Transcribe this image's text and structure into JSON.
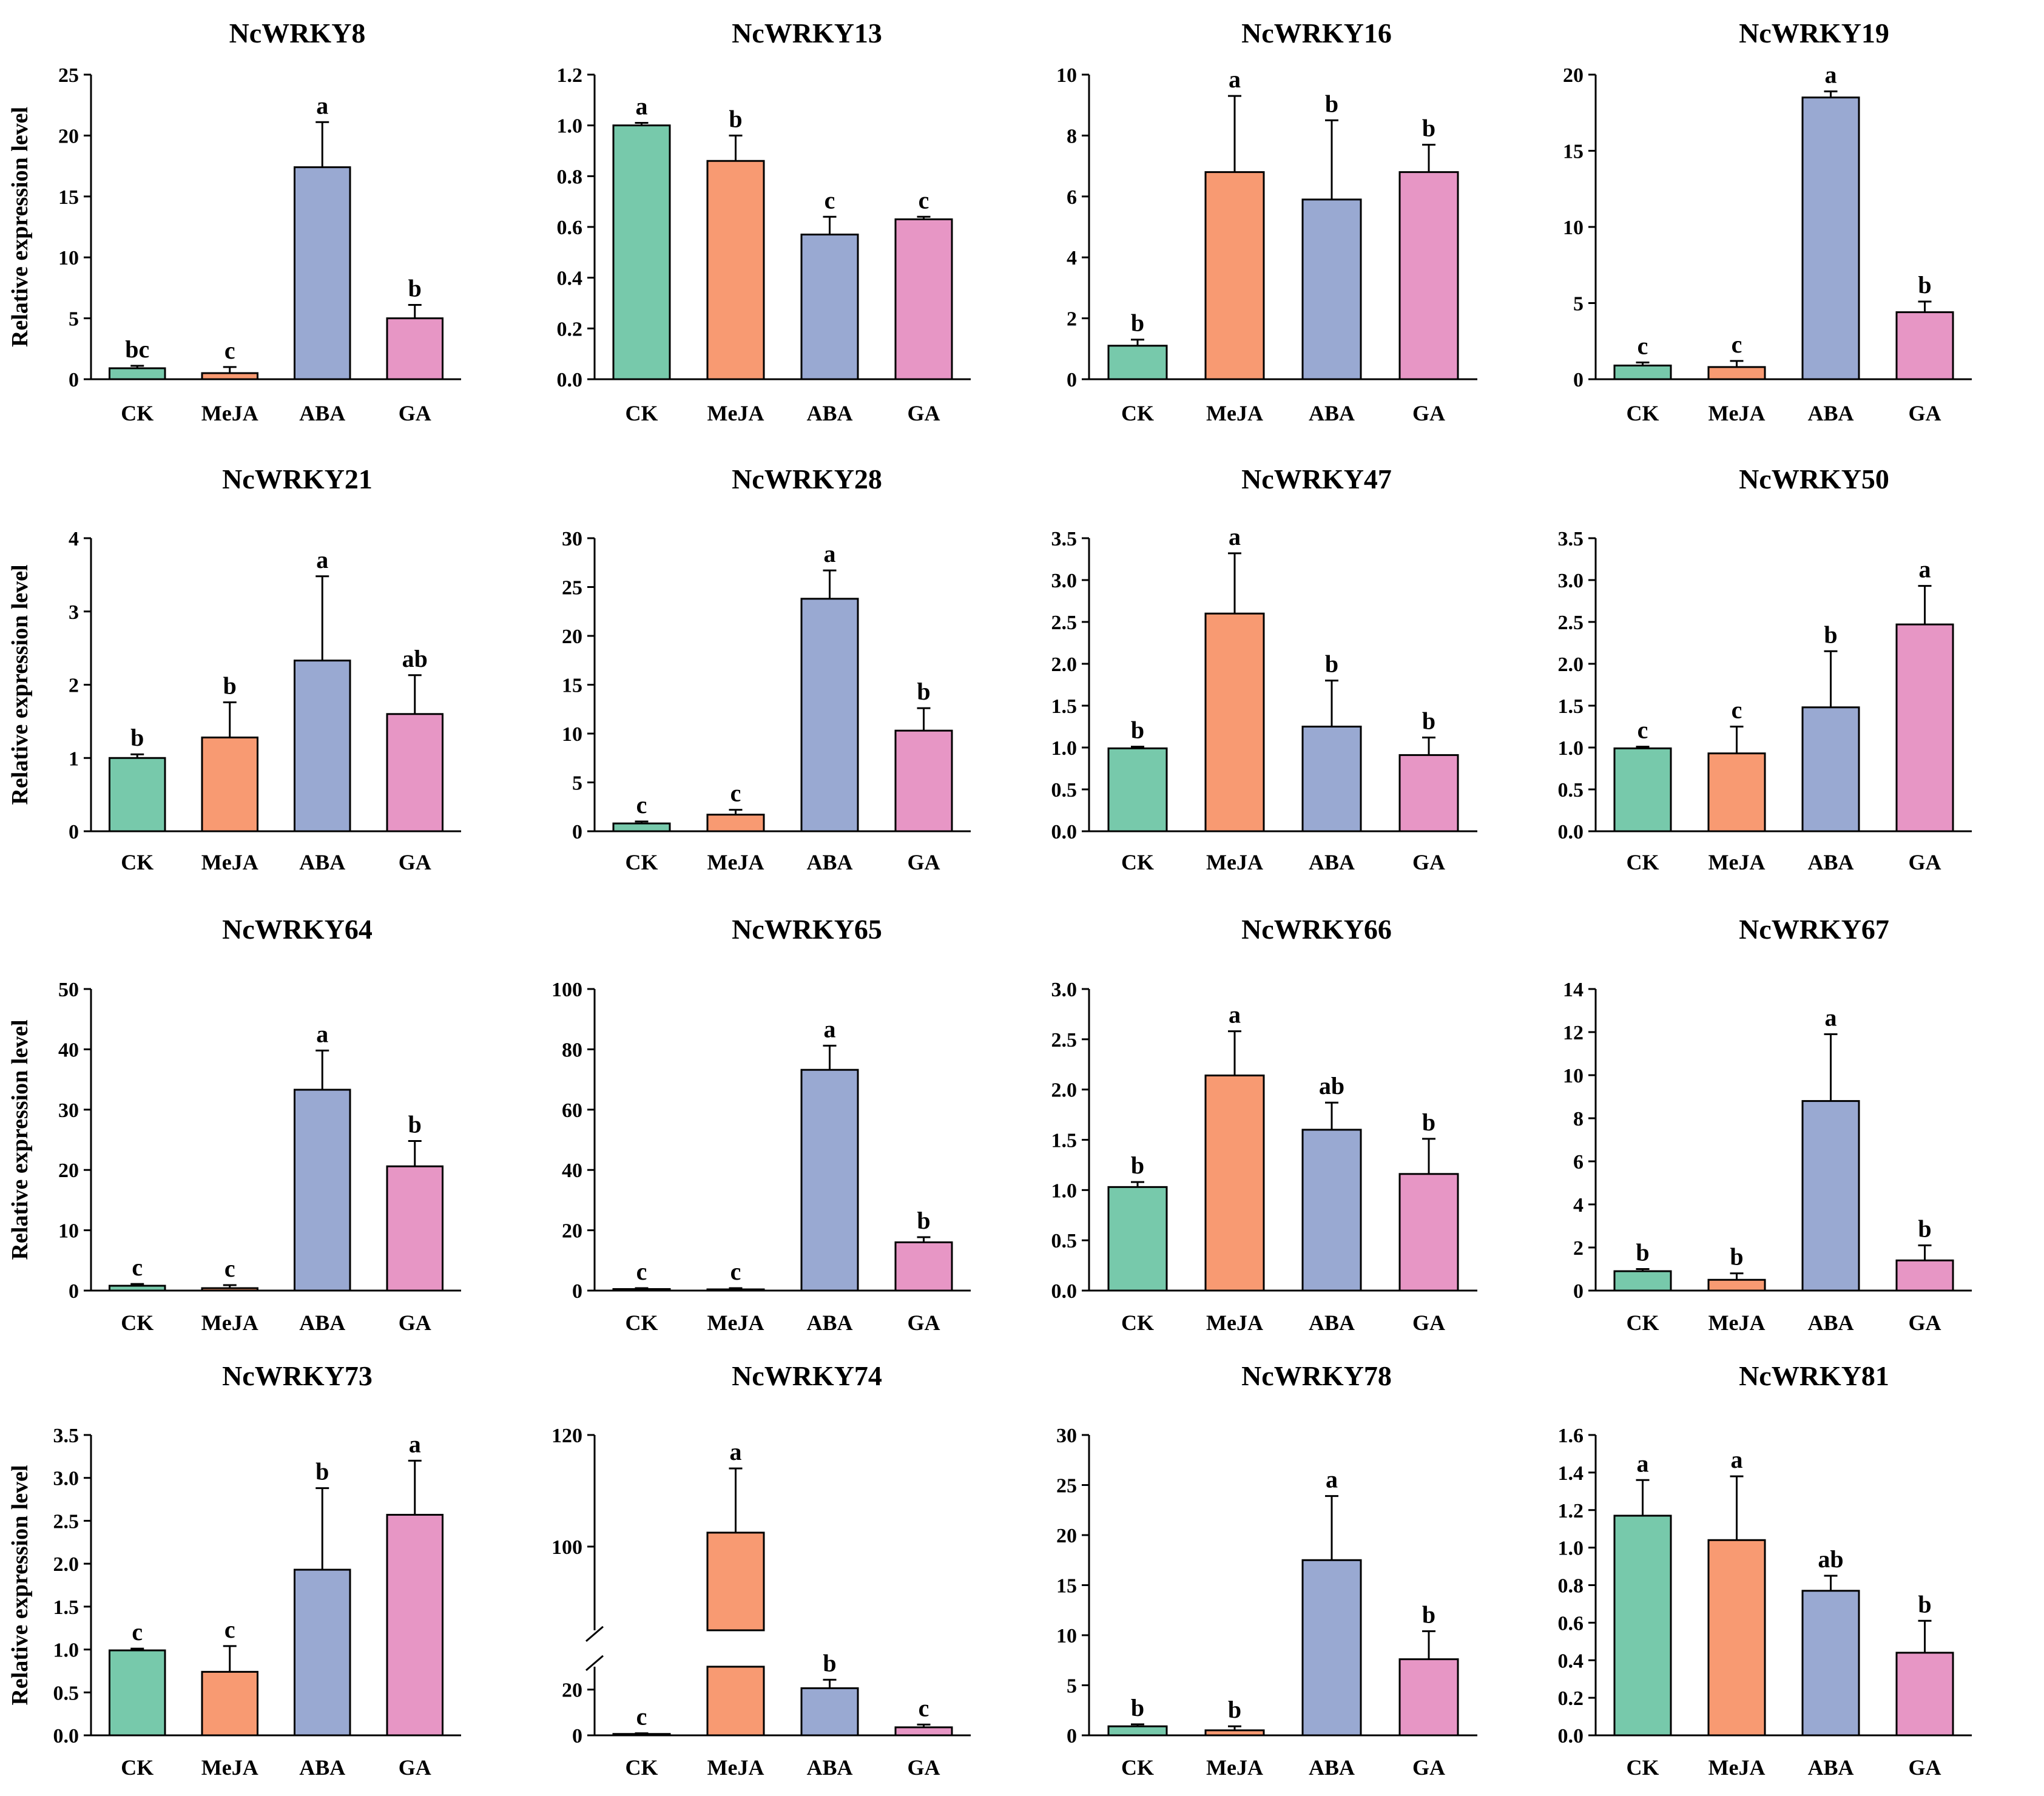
{
  "colors": {
    "CK": "#77c9ab",
    "MeJA": "#f89a72",
    "ABA": "#99a9d2",
    "GA": "#e796c5",
    "axis": "#000000"
  },
  "chart_data": [
    {
      "type": "bar",
      "title": "NcWRKY8",
      "ylabel": "Relative expression level",
      "categories": [
        "CK",
        "MeJA",
        "ABA",
        "GA"
      ],
      "values": [
        0.9,
        0.5,
        17.4,
        5.0
      ],
      "errors": [
        0.2,
        0.5,
        3.7,
        1.1
      ],
      "letters": [
        "bc",
        "c",
        "a",
        "b"
      ],
      "ylim": [
        0,
        25
      ],
      "yticks": [
        "0",
        "5",
        "10",
        "15",
        "20",
        "25"
      ]
    },
    {
      "type": "bar",
      "title": "NcWRKY13",
      "ylabel": "",
      "categories": [
        "CK",
        "MeJA",
        "ABA",
        "GA"
      ],
      "values": [
        1.0,
        0.86,
        0.57,
        0.63
      ],
      "errors": [
        0.01,
        0.1,
        0.07,
        0.01
      ],
      "letters": [
        "a",
        "b",
        "c",
        "c"
      ],
      "ylim": [
        0,
        1.2
      ],
      "yticks": [
        "0.0",
        "0.2",
        "0.4",
        "0.6",
        "0.8",
        "1.0",
        "1.2"
      ]
    },
    {
      "type": "bar",
      "title": "NcWRKY16",
      "ylabel": "",
      "categories": [
        "CK",
        "MeJA",
        "ABA",
        "GA"
      ],
      "values": [
        1.1,
        6.8,
        5.9,
        6.8
      ],
      "errors": [
        0.2,
        2.5,
        2.6,
        0.9
      ],
      "letters": [
        "b",
        "a",
        "b",
        "b"
      ],
      "ylim": [
        0,
        10
      ],
      "yticks": [
        "0",
        "2",
        "4",
        "6",
        "8",
        "10"
      ]
    },
    {
      "type": "bar",
      "title": "NcWRKY19",
      "ylabel": "",
      "categories": [
        "CK",
        "MeJA",
        "ABA",
        "GA"
      ],
      "values": [
        0.9,
        0.8,
        18.5,
        4.4
      ],
      "errors": [
        0.2,
        0.4,
        0.4,
        0.7
      ],
      "letters": [
        "c",
        "c",
        "a",
        "b"
      ],
      "ylim": [
        0,
        20
      ],
      "yticks": [
        "0",
        "5",
        "10",
        "15",
        "20"
      ]
    },
    {
      "type": "bar",
      "title": "NcWRKY21",
      "ylabel": "Relative expression level",
      "categories": [
        "CK",
        "MeJA",
        "ABA",
        "GA"
      ],
      "values": [
        1.0,
        1.28,
        2.33,
        1.6
      ],
      "errors": [
        0.05,
        0.48,
        1.15,
        0.53
      ],
      "letters": [
        "b",
        "b",
        "a",
        "ab"
      ],
      "ylim": [
        0,
        4
      ],
      "yticks": [
        "0",
        "1",
        "2",
        "3",
        "4"
      ]
    },
    {
      "type": "bar",
      "title": "NcWRKY28",
      "ylabel": "",
      "categories": [
        "CK",
        "MeJA",
        "ABA",
        "GA"
      ],
      "values": [
        0.8,
        1.7,
        23.8,
        10.3
      ],
      "errors": [
        0.2,
        0.5,
        2.9,
        2.3
      ],
      "letters": [
        "c",
        "c",
        "a",
        "b"
      ],
      "ylim": [
        0,
        30
      ],
      "yticks": [
        "0",
        "5",
        "10",
        "15",
        "20",
        "25",
        "30"
      ]
    },
    {
      "type": "bar",
      "title": "NcWRKY47",
      "ylabel": "",
      "categories": [
        "CK",
        "MeJA",
        "ABA",
        "GA"
      ],
      "values": [
        0.99,
        2.6,
        1.25,
        0.91
      ],
      "errors": [
        0.02,
        0.72,
        0.55,
        0.21
      ],
      "letters": [
        "b",
        "a",
        "b",
        "b"
      ],
      "ylim": [
        0,
        3.5
      ],
      "yticks": [
        "0.0",
        "0.5",
        "1.0",
        "1.5",
        "2.0",
        "2.5",
        "3.0",
        "3.5"
      ]
    },
    {
      "type": "bar",
      "title": "NcWRKY50",
      "ylabel": "",
      "categories": [
        "CK",
        "MeJA",
        "ABA",
        "GA"
      ],
      "values": [
        0.99,
        0.93,
        1.48,
        2.47
      ],
      "errors": [
        0.02,
        0.32,
        0.67,
        0.46
      ],
      "letters": [
        "c",
        "c",
        "b",
        "a"
      ],
      "ylim": [
        0,
        3.5
      ],
      "yticks": [
        "0.0",
        "0.5",
        "1.0",
        "1.5",
        "2.0",
        "2.5",
        "3.0",
        "3.5"
      ]
    },
    {
      "type": "bar",
      "title": "NcWRKY64",
      "ylabel": "Relative expression level",
      "categories": [
        "CK",
        "MeJA",
        "ABA",
        "GA"
      ],
      "values": [
        0.8,
        0.4,
        33.3,
        20.6
      ],
      "errors": [
        0.3,
        0.5,
        6.5,
        4.2
      ],
      "letters": [
        "c",
        "c",
        "a",
        "b"
      ],
      "ylim": [
        0,
        50
      ],
      "yticks": [
        "0",
        "10",
        "20",
        "30",
        "40",
        "50"
      ]
    },
    {
      "type": "bar",
      "title": "NcWRKY65",
      "ylabel": "",
      "categories": [
        "CK",
        "MeJA",
        "ABA",
        "GA"
      ],
      "values": [
        0.5,
        0.4,
        73.2,
        16.0
      ],
      "errors": [
        0.3,
        0.4,
        8.0,
        1.7
      ],
      "letters": [
        "c",
        "c",
        "a",
        "b"
      ],
      "ylim": [
        0,
        100
      ],
      "yticks": [
        "0",
        "20",
        "40",
        "60",
        "80",
        "100"
      ]
    },
    {
      "type": "bar",
      "title": "NcWRKY66",
      "ylabel": "",
      "categories": [
        "CK",
        "MeJA",
        "ABA",
        "GA"
      ],
      "values": [
        1.03,
        2.14,
        1.6,
        1.16
      ],
      "errors": [
        0.05,
        0.44,
        0.27,
        0.35
      ],
      "letters": [
        "b",
        "a",
        "ab",
        "b"
      ],
      "ylim": [
        0,
        3.0
      ],
      "yticks": [
        "0.0",
        "0.5",
        "1.0",
        "1.5",
        "2.0",
        "2.5",
        "3.0"
      ]
    },
    {
      "type": "bar",
      "title": "NcWRKY67",
      "ylabel": "",
      "categories": [
        "CK",
        "MeJA",
        "ABA",
        "GA"
      ],
      "values": [
        0.9,
        0.5,
        8.8,
        1.4
      ],
      "errors": [
        0.1,
        0.3,
        3.1,
        0.7
      ],
      "letters": [
        "b",
        "b",
        "a",
        "b"
      ],
      "ylim": [
        0,
        14
      ],
      "yticks": [
        "0",
        "2",
        "4",
        "6",
        "8",
        "10",
        "12",
        "14"
      ]
    },
    {
      "type": "bar",
      "title": "NcWRKY73",
      "ylabel": "Relative expression level",
      "categories": [
        "CK",
        "MeJA",
        "ABA",
        "GA"
      ],
      "values": [
        0.99,
        0.74,
        1.93,
        2.57
      ],
      "errors": [
        0.02,
        0.3,
        0.95,
        0.63
      ],
      "letters": [
        "c",
        "c",
        "b",
        "a"
      ],
      "ylim": [
        0,
        3.5
      ],
      "yticks": [
        "0.0",
        "0.5",
        "1.0",
        "1.5",
        "2.0",
        "2.5",
        "3.0",
        "3.5"
      ]
    },
    {
      "type": "bar",
      "title": "NcWRKY74",
      "ylabel": "",
      "categories": [
        "CK",
        "MeJA",
        "ABA",
        "GA"
      ],
      "values": [
        0.6,
        102.5,
        20.6,
        3.5
      ],
      "errors": [
        0.3,
        11.5,
        3.7,
        1.2
      ],
      "letters": [
        "c",
        "a",
        "b",
        "c"
      ],
      "ylim": [
        0,
        120
      ],
      "yticks": [
        "20",
        "100",
        "120"
      ],
      "yticks_zero": "0",
      "axis_break": [
        30,
        85
      ]
    },
    {
      "type": "bar",
      "title": "NcWRKY78",
      "ylabel": "",
      "categories": [
        "CK",
        "MeJA",
        "ABA",
        "GA"
      ],
      "values": [
        0.9,
        0.5,
        17.5,
        7.6
      ],
      "errors": [
        0.2,
        0.4,
        6.4,
        2.8
      ],
      "letters": [
        "b",
        "b",
        "a",
        "b"
      ],
      "ylim": [
        0,
        30
      ],
      "yticks": [
        "0",
        "5",
        "10",
        "15",
        "20",
        "25",
        "30"
      ]
    },
    {
      "type": "bar",
      "title": "NcWRKY81",
      "ylabel": "",
      "categories": [
        "CK",
        "MeJA",
        "ABA",
        "GA"
      ],
      "values": [
        1.17,
        1.04,
        0.77,
        0.44
      ],
      "errors": [
        0.19,
        0.34,
        0.08,
        0.17
      ],
      "letters": [
        "a",
        "a",
        "ab",
        "b"
      ],
      "ylim": [
        0,
        1.6
      ],
      "yticks": [
        "0.0",
        "0.2",
        "0.4",
        "0.6",
        "0.8",
        "1.0",
        "1.2",
        "1.4",
        "1.6"
      ]
    }
  ]
}
